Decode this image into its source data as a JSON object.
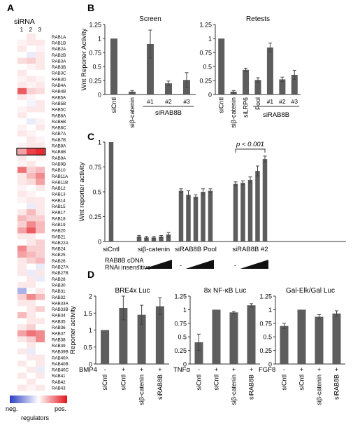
{
  "panels": {
    "A": "A",
    "B": "B",
    "C": "C",
    "D": "D"
  },
  "heatmap": {
    "title": "siRNA",
    "column_labels": [
      "1",
      "2",
      "3"
    ],
    "genes": [
      "RAB1A",
      "RAB1B",
      "RAB2A",
      "RAB2B",
      "RAB3A",
      "RAB3B",
      "RAB3C",
      "RAB3D",
      "RAB4A",
      "RAB4B",
      "RAB5A",
      "RAB5B",
      "RAB5C",
      "RAB6A",
      "RAB6B",
      "RAB6C",
      "RAB7A",
      "RAB7B",
      "RAB8A",
      "RAB8B",
      "RAB9A",
      "RAB9B",
      "RAB10",
      "RAB11A",
      "RAB11B",
      "RAB12",
      "RAB13",
      "RAB14",
      "RAB15",
      "RAB17",
      "RAB18",
      "RAB19",
      "RAB20",
      "RAB21",
      "RAB22A",
      "RAB24",
      "RAB25",
      "RAB26",
      "RAB27A",
      "RAB27B",
      "RAB28",
      "RAB30",
      "RAB31",
      "RAB32",
      "RAB33A",
      "RAB33B",
      "RAB34",
      "RAB35",
      "RAB36",
      "RAB37",
      "RAB38",
      "RAB39",
      "RAB39B",
      "RAB40A",
      "RAB40B",
      "RAB40C",
      "RAB41",
      "RAB42",
      "RAB43"
    ],
    "highlighted_gene": "RAB8B",
    "values": [
      [
        0.0,
        0.1,
        0.0
      ],
      [
        0.05,
        0.1,
        0.1
      ],
      [
        0.1,
        0.0,
        0.05
      ],
      [
        0.0,
        -0.1,
        0.1
      ],
      [
        0.15,
        0.2,
        0.1
      ],
      [
        0.0,
        0.05,
        0.1
      ],
      [
        0.1,
        0.0,
        0.0
      ],
      [
        0.05,
        0.1,
        0.05
      ],
      [
        0.1,
        0.05,
        0.1
      ],
      [
        0.7,
        0.2,
        0.15
      ],
      [
        0.1,
        0.05,
        0.0
      ],
      [
        0.0,
        -0.05,
        0.1
      ],
      [
        0.05,
        0.1,
        0.1
      ],
      [
        0.1,
        0.0,
        0.0
      ],
      [
        0.0,
        -0.1,
        0.05
      ],
      [
        0.05,
        0.0,
        0.1
      ],
      [
        0.1,
        0.05,
        0.0
      ],
      [
        0.0,
        0.1,
        0.05
      ],
      [
        0.05,
        0.1,
        0.1
      ],
      [
        0.4,
        0.8,
        0.9
      ],
      [
        0.1,
        0.0,
        0.05
      ],
      [
        0.05,
        0.1,
        0.0
      ],
      [
        0.6,
        0.2,
        0.3
      ],
      [
        0.1,
        0.3,
        0.5
      ],
      [
        0.1,
        0.15,
        0.4
      ],
      [
        0.05,
        0.0,
        0.1
      ],
      [
        0.1,
        0.05,
        0.0
      ],
      [
        0.05,
        0.1,
        0.1
      ],
      [
        0.0,
        -0.1,
        0.1
      ],
      [
        0.1,
        0.3,
        0.1
      ],
      [
        0.3,
        0.2,
        0.2
      ],
      [
        0.2,
        0.5,
        0.3
      ],
      [
        0.4,
        0.7,
        0.3
      ],
      [
        0.1,
        0.1,
        0.0
      ],
      [
        0.0,
        0.1,
        0.2
      ],
      [
        0.5,
        0.2,
        0.2
      ],
      [
        0.4,
        0.3,
        0.2
      ],
      [
        0.1,
        0.2,
        0.3
      ],
      [
        0.1,
        0.0,
        -0.1
      ],
      [
        0.1,
        -0.1,
        0.1
      ],
      [
        0.0,
        0.1,
        -0.1
      ],
      [
        0.1,
        0.1,
        0.0
      ],
      [
        -0.4,
        0.0,
        0.1
      ],
      [
        0.2,
        0.5,
        0.3
      ],
      [
        0.1,
        0.1,
        0.0
      ],
      [
        0.0,
        0.1,
        0.2
      ],
      [
        0.3,
        0.1,
        0.0
      ],
      [
        0.0,
        0.1,
        0.1
      ],
      [
        0.1,
        0.2,
        0.0
      ],
      [
        0.4,
        0.6,
        0.5
      ],
      [
        0.1,
        0.2,
        0.5
      ],
      [
        0.0,
        0.1,
        0.0
      ],
      [
        0.1,
        -0.1,
        0.0
      ],
      [
        0.0,
        0.1,
        0.1
      ],
      [
        0.1,
        0.0,
        0.1
      ],
      [
        0.0,
        0.1,
        -0.1
      ],
      [
        0.1,
        0.0,
        0.1
      ],
      [
        0.0,
        0.1,
        0.0
      ],
      [
        0.1,
        0.05,
        0.1
      ]
    ],
    "legend_neg": "neg.",
    "legend_pos": "pos.",
    "legend_label": "regulators",
    "colors": {
      "neg": "#2b3fc4",
      "pos": "#e3141b",
      "mid": "#ffffff"
    }
  },
  "chart_data": [
    {
      "type": "bar",
      "panel": "B",
      "title": "Screen",
      "ylabel": "Wnt Reporter Activity",
      "ylim": [
        0,
        1.25
      ],
      "yticks": [
        "0",
        "0.25",
        "0.5",
        "0.75",
        "1",
        "1.25"
      ],
      "categories": [
        "siCntl",
        "siβ-catenin",
        "#1",
        "#2",
        "#3"
      ],
      "values": [
        1.0,
        0.05,
        0.9,
        0.2,
        0.26
      ],
      "errors": [
        0,
        0.02,
        0.25,
        0.04,
        0.13
      ],
      "group_label": "siRAB8B"
    },
    {
      "type": "bar",
      "panel": "B",
      "title": "Retests",
      "ylim": [
        0,
        1.25
      ],
      "yticks": [
        "0",
        "0.25",
        "0.5",
        "0.75",
        "1",
        "1.25"
      ],
      "categories": [
        "siCntl",
        "siβ-catenin",
        "siLRP6",
        "Pool",
        "#1",
        "#2",
        "#3"
      ],
      "values": [
        1.0,
        0.05,
        0.44,
        0.26,
        0.84,
        0.27,
        0.35
      ],
      "errors": [
        0,
        0.02,
        0.03,
        0.04,
        0.08,
        0.04,
        0.08
      ],
      "group_label": "siRAB8B"
    },
    {
      "type": "bar",
      "panel": "C",
      "ylabel": "Wnt reporter activity",
      "ylim": [
        0,
        1
      ],
      "yticks": [
        "0",
        "0.25",
        "0.5",
        "0.75",
        "1"
      ],
      "groups": [
        "siCntl",
        "siβ-catenin",
        "siRAB8B Pool",
        "siRAB8B #2"
      ],
      "values": [
        1.0,
        0.05,
        0.04,
        0.04,
        0.05,
        0.07,
        0.51,
        0.47,
        0.45,
        0.5,
        0.51,
        0.58,
        0.59,
        0.62,
        0.71,
        0.83
      ],
      "errors": [
        0,
        0.01,
        0.01,
        0.01,
        0.01,
        0.02,
        0.02,
        0.04,
        0.02,
        0.03,
        0.02,
        0.02,
        0.02,
        0.03,
        0.05,
        0.03
      ],
      "annotation": "p < 0.001",
      "row_label_1": "RAB8B cDNA",
      "row_label_2": "RNAi insensitive",
      "minus": "-"
    },
    {
      "type": "bar",
      "panel": "D",
      "title": "BRE4x Luc",
      "ylabel": "Reporter activity",
      "ylim": [
        0,
        2
      ],
      "yticks": [
        "0",
        "0.5",
        "1",
        "1.5",
        "2"
      ],
      "categories": [
        "siCntl",
        "siCntl",
        "siβ-catenin",
        "siRAB8B"
      ],
      "values": [
        1.0,
        1.65,
        1.45,
        1.7
      ],
      "errors": [
        0,
        0.35,
        0.28,
        0.25
      ],
      "treatment": "BMP4",
      "signs": [
        "-",
        "+",
        "+",
        "+"
      ]
    },
    {
      "type": "bar",
      "panel": "D",
      "title": "8x NF-κB Luc",
      "ylim": [
        0,
        1.25
      ],
      "yticks": [
        "0",
        "0.25",
        "0.5",
        "0.75",
        "1",
        "1.25"
      ],
      "categories": [
        "siCntl",
        "siCntl",
        "siβ-catenin",
        "siRAB8B"
      ],
      "values": [
        0.4,
        1.0,
        0.95,
        1.08
      ],
      "errors": [
        0.15,
        0,
        0.02,
        0.03
      ],
      "treatment": "TNFα",
      "signs": [
        "-",
        "+",
        "+",
        "+"
      ]
    },
    {
      "type": "bar",
      "panel": "D",
      "title": "Gal-Elk/Gal Luc",
      "ylim": [
        0,
        1.25
      ],
      "yticks": [
        "0",
        "0.25",
        "0.5",
        "0.75",
        "1",
        "1.25"
      ],
      "categories": [
        "siCntl",
        "siCntl",
        "siβ-catenin",
        "siRAB8B"
      ],
      "values": [
        0.7,
        1.0,
        0.87,
        0.93
      ],
      "errors": [
        0.05,
        0,
        0.04,
        0.05
      ],
      "treatment": "FGF8",
      "signs": [
        "-",
        "+",
        "+",
        "+"
      ]
    }
  ],
  "colors": {
    "bar": "#5d5d5d",
    "axis": "#333333"
  }
}
